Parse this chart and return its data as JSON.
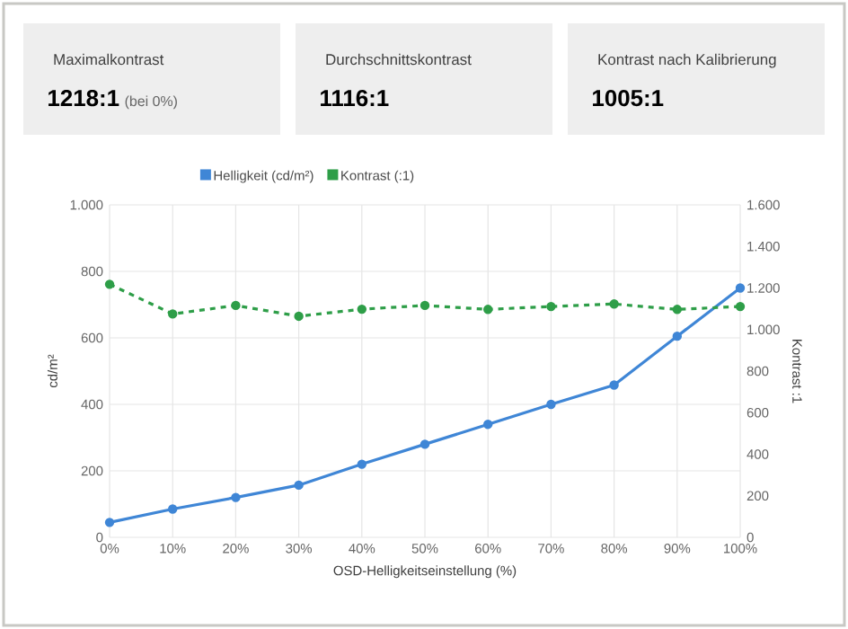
{
  "chart_data": [
    {
      "type": "other",
      "title": "Maximalkontrast",
      "annotations": [
        "1218:1",
        "(bei 0%)"
      ]
    },
    {
      "type": "other",
      "title": "Durchschnittskontrast",
      "annotations": [
        "1116:1"
      ]
    },
    {
      "type": "other",
      "title": "Kontrast nach Kalibrierung",
      "annotations": [
        "1005:1"
      ]
    },
    {
      "type": "line",
      "xlabel": "OSD-Helligkeitseinstellung (%)",
      "ylabel": "cd/m²",
      "y2label": "Kontrast :1",
      "categories": [
        "0%",
        "10%",
        "20%",
        "30%",
        "40%",
        "50%",
        "60%",
        "70%",
        "80%",
        "90%",
        "100%"
      ],
      "series": [
        {
          "name": "Helligkeit (cd/m²)",
          "color": "#3f86d6",
          "values": [
            45,
            85,
            120,
            157,
            220,
            280,
            340,
            400,
            458,
            605,
            750
          ],
          "line_style": "solid"
        },
        {
          "name": "Kontrast (:1)",
          "color": "#2e9e48",
          "axis": "y2",
          "values": [
            1218,
            1075,
            1116,
            1064,
            1098,
            1116,
            1097,
            1111,
            1123,
            1097,
            1111
          ],
          "line_style": "dashed"
        }
      ],
      "ylim": [
        0,
        1000
      ],
      "yticks": [
        0,
        200,
        400,
        600,
        800,
        {
          "value": 1000,
          "label": "1.000"
        }
      ],
      "y2lim": [
        0,
        1600
      ],
      "y2ticks": [
        0,
        200,
        400,
        600,
        800,
        {
          "value": 1000,
          "label": "1.000"
        },
        {
          "value": 1200,
          "label": "1.200"
        },
        {
          "value": 1400,
          "label": "1.400"
        },
        {
          "value": 1600,
          "label": "1.600"
        }
      ],
      "grid": true,
      "legend": "top",
      "marker": "circle"
    }
  ]
}
